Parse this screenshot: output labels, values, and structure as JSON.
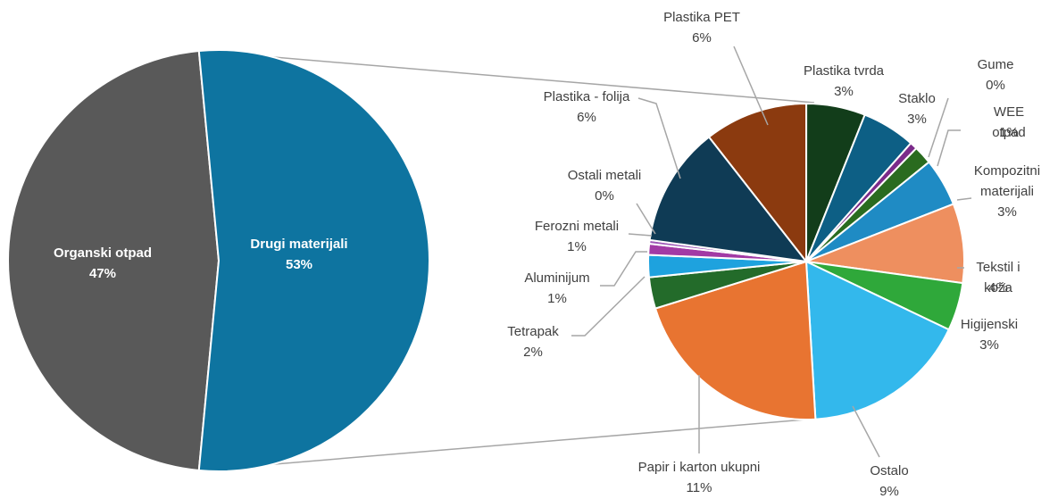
{
  "chart_data": [
    {
      "type": "pie",
      "categories": [
        "Organski otpad",
        "Drugi materijali"
      ],
      "values": [
        47,
        53
      ],
      "value_labels": [
        "47%",
        "53%"
      ],
      "colors": [
        "#595959",
        "#0e74a0"
      ]
    },
    {
      "type": "pie",
      "categories": [
        "Plastika PET",
        "Plastika tvrda",
        "Staklo",
        "Gume",
        "WEE otpad",
        "Kompozitni materijali",
        "Tekstil i koža",
        "Higijenski",
        "Ostalo",
        "Papir i karton ukupni",
        "Tetrapak",
        "Aluminijum",
        "Ferozni metali",
        "Ostali metali",
        "Plastika - folija"
      ],
      "values": [
        5.6,
        3.2,
        2.9,
        0.4,
        1.0,
        2.6,
        4.3,
        2.6,
        9.0,
        11.2,
        1.7,
        1.2,
        0.6,
        0.2,
        6.5
      ],
      "value_labels": [
        "6%",
        "3%",
        "3%",
        "0%",
        "1%",
        "3%",
        "4%",
        "3%",
        "9%",
        "11%",
        "2%",
        "1%",
        "1%",
        "0%",
        "6%"
      ],
      "colors": [
        "#8b3a0f",
        "#123d1a",
        "#0d5f85",
        "#7b2b8a",
        "#2a6b1f",
        "#1f8bc4",
        "#ee8f5f",
        "#2fa83a",
        "#33b8ec",
        "#e87431",
        "#236b2a",
        "#1ea2de",
        "#a23aa5",
        "#9e58b8",
        "#0f3b55"
      ]
    }
  ]
}
